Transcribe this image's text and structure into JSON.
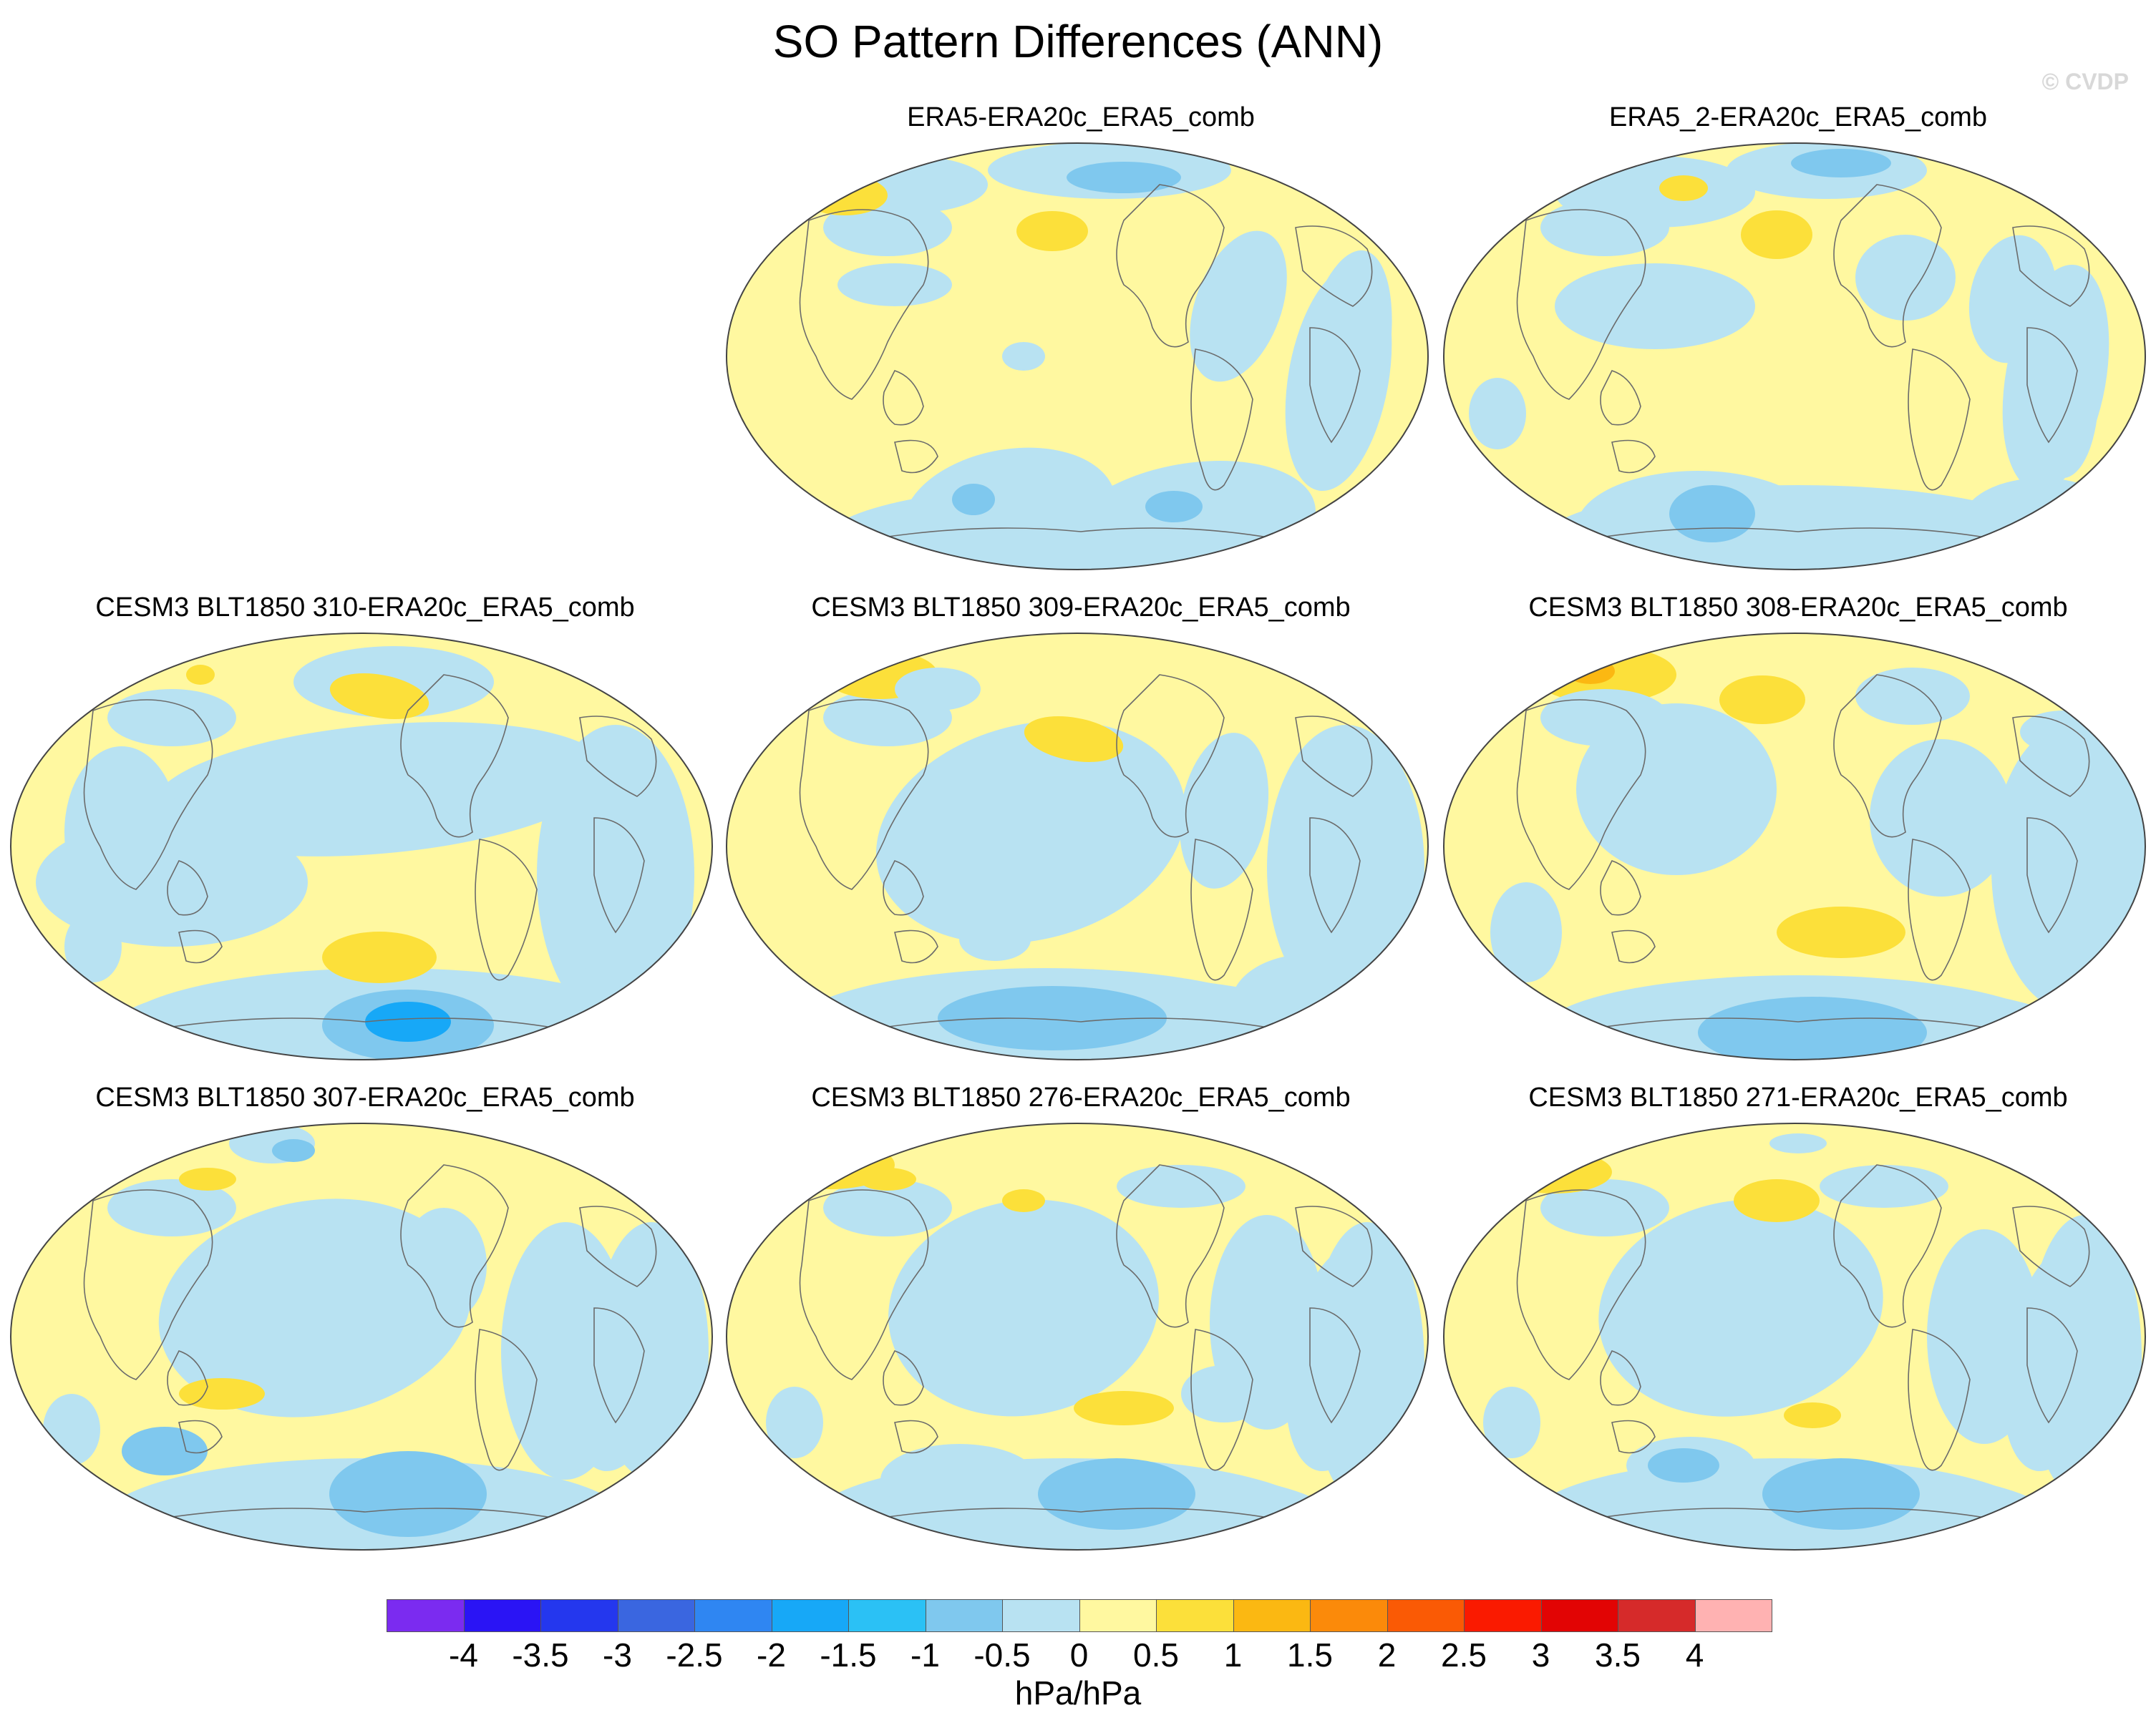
{
  "title": "SO Pattern Differences (ANN)",
  "watermark": "© CVDP",
  "colors": {
    "palette": [
      "#7b2bf0",
      "#2a14f5",
      "#2437ee",
      "#3a66e0",
      "#2f86f2",
      "#17a8f7",
      "#2bc1f5",
      "#7fc8ee",
      "#b8e2f2",
      "#fff8a0",
      "#fce03a",
      "#fbb812",
      "#fb8a0a",
      "#fa5a05",
      "#fa1a00",
      "#e20404",
      "#d62a2a",
      "#ffb2b2"
    ],
    "coast": "#6b6b6b",
    "border": "#444444"
  },
  "chart_data": {
    "type": "contour-map-panels",
    "title": "SO Pattern Differences (ANN)",
    "units": "hPa/hPa",
    "colorbar": {
      "levels": [
        "-4",
        "-3.5",
        "-3",
        "-2.5",
        "-2",
        "-1.5",
        "-1",
        "-0.5",
        "0",
        "0.5",
        "1",
        "1.5",
        "2",
        "2.5",
        "3",
        "3.5",
        "4"
      ],
      "range": [
        -4,
        4
      ],
      "interval": 0.5
    },
    "panels": [
      {
        "title": "ERA5-ERA20c_ERA5_comb",
        "row": 0,
        "col": 1
      },
      {
        "title": "ERA5_2-ERA20c_ERA5_comb",
        "row": 0,
        "col": 2
      },
      {
        "title": "CESM3 BLT1850 310-ERA20c_ERA5_comb",
        "row": 1,
        "col": 0
      },
      {
        "title": "CESM3 BLT1850 309-ERA20c_ERA5_comb",
        "row": 1,
        "col": 1
      },
      {
        "title": "CESM3 BLT1850 308-ERA20c_ERA5_comb",
        "row": 1,
        "col": 2
      },
      {
        "title": "CESM3 BLT1850 307-ERA20c_ERA5_comb",
        "row": 2,
        "col": 0
      },
      {
        "title": "CESM3 BLT1850 276-ERA20c_ERA5_comb",
        "row": 2,
        "col": 1
      },
      {
        "title": "CESM3 BLT1850 271-ERA20c_ERA5_comb",
        "row": 2,
        "col": 2
      }
    ]
  }
}
